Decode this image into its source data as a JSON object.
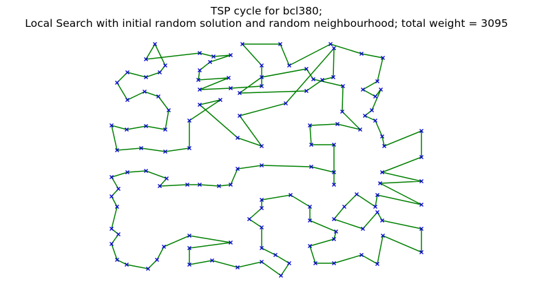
{
  "chart_data": {
    "type": "line",
    "title": [
      "TSP cycle for bcl380;",
      "Local Search with initial random solution and random neighbourhood; total weight = 3095"
    ],
    "x": [
      70,
      57,
      135,
      155,
      180,
      150,
      135,
      133,
      177,
      135,
      180,
      225,
      225,
      197,
      252,
      265,
      325,
      370,
      401,
      393,
      372,
      390,
      398,
      385,
      375,
      390,
      400,
      403,
      457,
      457,
      400,
      457,
      397,
      457,
      393,
      390,
      363,
      345,
      330,
      372,
      393,
      400,
      457,
      457,
      401,
      393,
      370,
      330,
      303,
      295,
      330,
      333,
      295,
      295,
      267,
      225,
      225,
      207,
      225,
      225,
      245,
      265,
      253,
      225,
      190,
      153,
      120,
      120,
      180,
      120,
      83,
      73,
      60,
      29,
      15,
      7,
      17,
      7,
      15,
      7,
      17,
      7,
      30,
      57,
      87,
      77,
      117,
      135,
      163,
      180,
      190,
      225,
      297,
      330,
      330,
      330,
      297,
      295,
      335,
      368,
      342,
      343,
      300,
      290,
      225,
      193,
      290,
      313,
      329,
      330,
      260,
      193,
      225,
      190,
      135,
      165,
      120,
      120,
      85,
      50,
      15,
      7,
      29,
      57,
      85,
      90,
      75,
      55,
      30,
      15,
      30,
      57,
      77,
      85
    ],
    "y": [
      341,
      319,
      328,
      323,
      325,
      315,
      303,
      289,
      292,
      275,
      277,
      280,
      310,
      341,
      341,
      310,
      341,
      327,
      321,
      287,
      275,
      265,
      275,
      245,
      237,
      230,
      207,
      193,
      215,
      177,
      155,
      142,
      139,
      108,
      122,
      105,
      123,
      105,
      87,
      73,
      97,
      85,
      73,
      39,
      63,
      22,
      35,
      23,
      23,
      48,
      58,
      69,
      85,
      105,
      122,
      115,
      103,
      87,
      75,
      45,
      35,
      23,
      5,
      25,
      17,
      27,
      21,
      45,
      53,
      63,
      47,
      28,
      15,
      21,
      28,
      51,
      65,
      73,
      105,
      120,
      131,
      148,
      155,
      157,
      146,
      135,
      137,
      137,
      135,
      137,
      160,
      165,
      163,
      155,
      137,
      195,
      195,
      223,
      225,
      217,
      243,
      280,
      290,
      305,
      293,
      270,
      273,
      289,
      293,
      335,
      255,
      237,
      193,
      205,
      253,
      260,
      230,
      190,
      185,
      190,
      187,
      223,
      217,
      222,
      217,
      245,
      265,
      272,
      260,
      285,
      300,
      293,
      300,
      310
    ],
    "xlim": [
      0,
      460
    ],
    "ylim": [
      0,
      345
    ],
    "closed": true,
    "marker": "x",
    "color": "#008000",
    "marker_color": "#0000cc"
  }
}
